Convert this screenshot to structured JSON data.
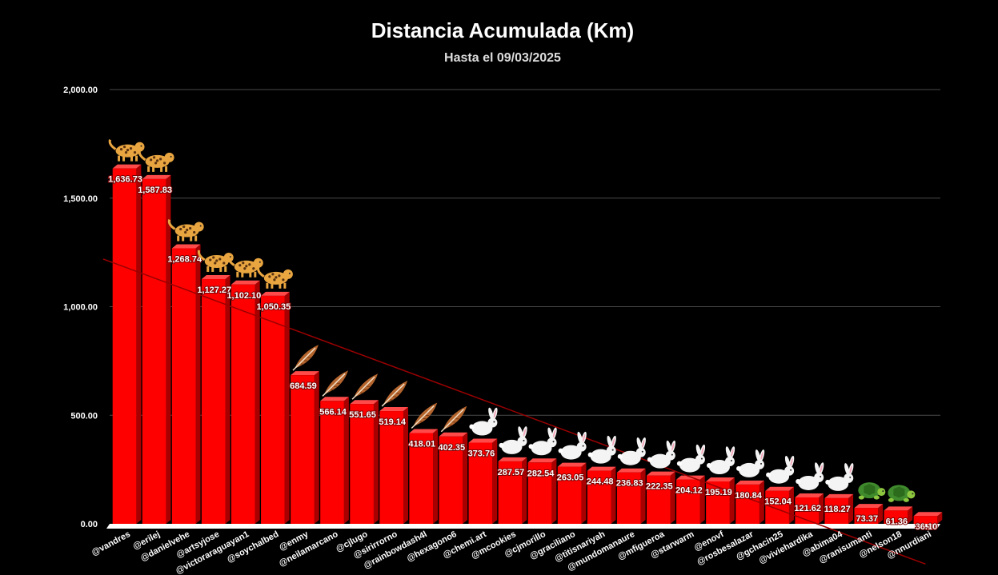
{
  "chart_data": {
    "type": "bar",
    "title": "Distancia Acumulada (Km)",
    "subtitle": "Hasta el 09/03/2025",
    "xlabel": "",
    "ylabel": "",
    "ylim": [
      0,
      2000
    ],
    "yticks": [
      0,
      500,
      1000,
      1500,
      2000
    ],
    "ytick_labels": [
      "0.00",
      "500.00",
      "1,000.00",
      "1,500.00",
      "2,000.00"
    ],
    "grid": true,
    "trendline": true,
    "bar_color": "#ff0000",
    "categories": [
      "@vandres",
      "@erilej",
      "@danielvehe",
      "@artsyjose",
      "@victoraraguayan1",
      "@soychalbed",
      "@enmy",
      "@neilamarcano",
      "@cjlugo",
      "@sirirrorno",
      "@rainbowdash4l",
      "@hexagono6",
      "@chemi.art",
      "@mcookies",
      "@cjmorillo",
      "@graciliano",
      "@titisnariyah",
      "@mundomanaure",
      "@mfigueroa",
      "@starwarm",
      "@enovf",
      "@rosbesalazar",
      "@gchacin25",
      "@viviehardika",
      "@abima04",
      "@ranisumanti",
      "@nelson18",
      "@nnurdiani"
    ],
    "values": [
      1636.73,
      1587.83,
      1268.74,
      1127.27,
      1102.1,
      1050.35,
      684.59,
      566.14,
      551.65,
      519.14,
      418.01,
      402.35,
      373.76,
      287.57,
      282.54,
      263.05,
      244.48,
      236.83,
      222.35,
      204.12,
      195.19,
      180.84,
      152.04,
      121.62,
      118.27,
      73.37,
      61.36,
      36.1
    ],
    "value_labels": [
      "1,636.73",
      "1,587.83",
      "1,268.74",
      "1,127.27",
      "1,102.10",
      "1,050.35",
      "684.59",
      "566.14",
      "551.65",
      "519.14",
      "418.01",
      "402.35",
      "373.76",
      "287.57",
      "282.54",
      "263.05",
      "244.48",
      "236.83",
      "222.35",
      "204.12",
      "195.19",
      "180.84",
      "152.04",
      "121.62",
      "118.27",
      "73.37",
      "61.36",
      "36.10"
    ],
    "markers": [
      "leopard-icon",
      "leopard-icon",
      "leopard-icon",
      "leopard-icon",
      "leopard-icon",
      "leopard-icon",
      "feather-icon",
      "feather-icon",
      "feather-icon",
      "feather-icon",
      "feather-icon",
      "feather-icon",
      "rabbit-icon",
      "rabbit-icon",
      "rabbit-icon",
      "rabbit-icon",
      "rabbit-icon",
      "rabbit-icon",
      "rabbit-icon",
      "rabbit-icon",
      "rabbit-icon",
      "rabbit-icon",
      "rabbit-icon",
      "rabbit-icon",
      "rabbit-icon",
      "turtle-icon",
      "turtle-icon",
      ""
    ]
  }
}
